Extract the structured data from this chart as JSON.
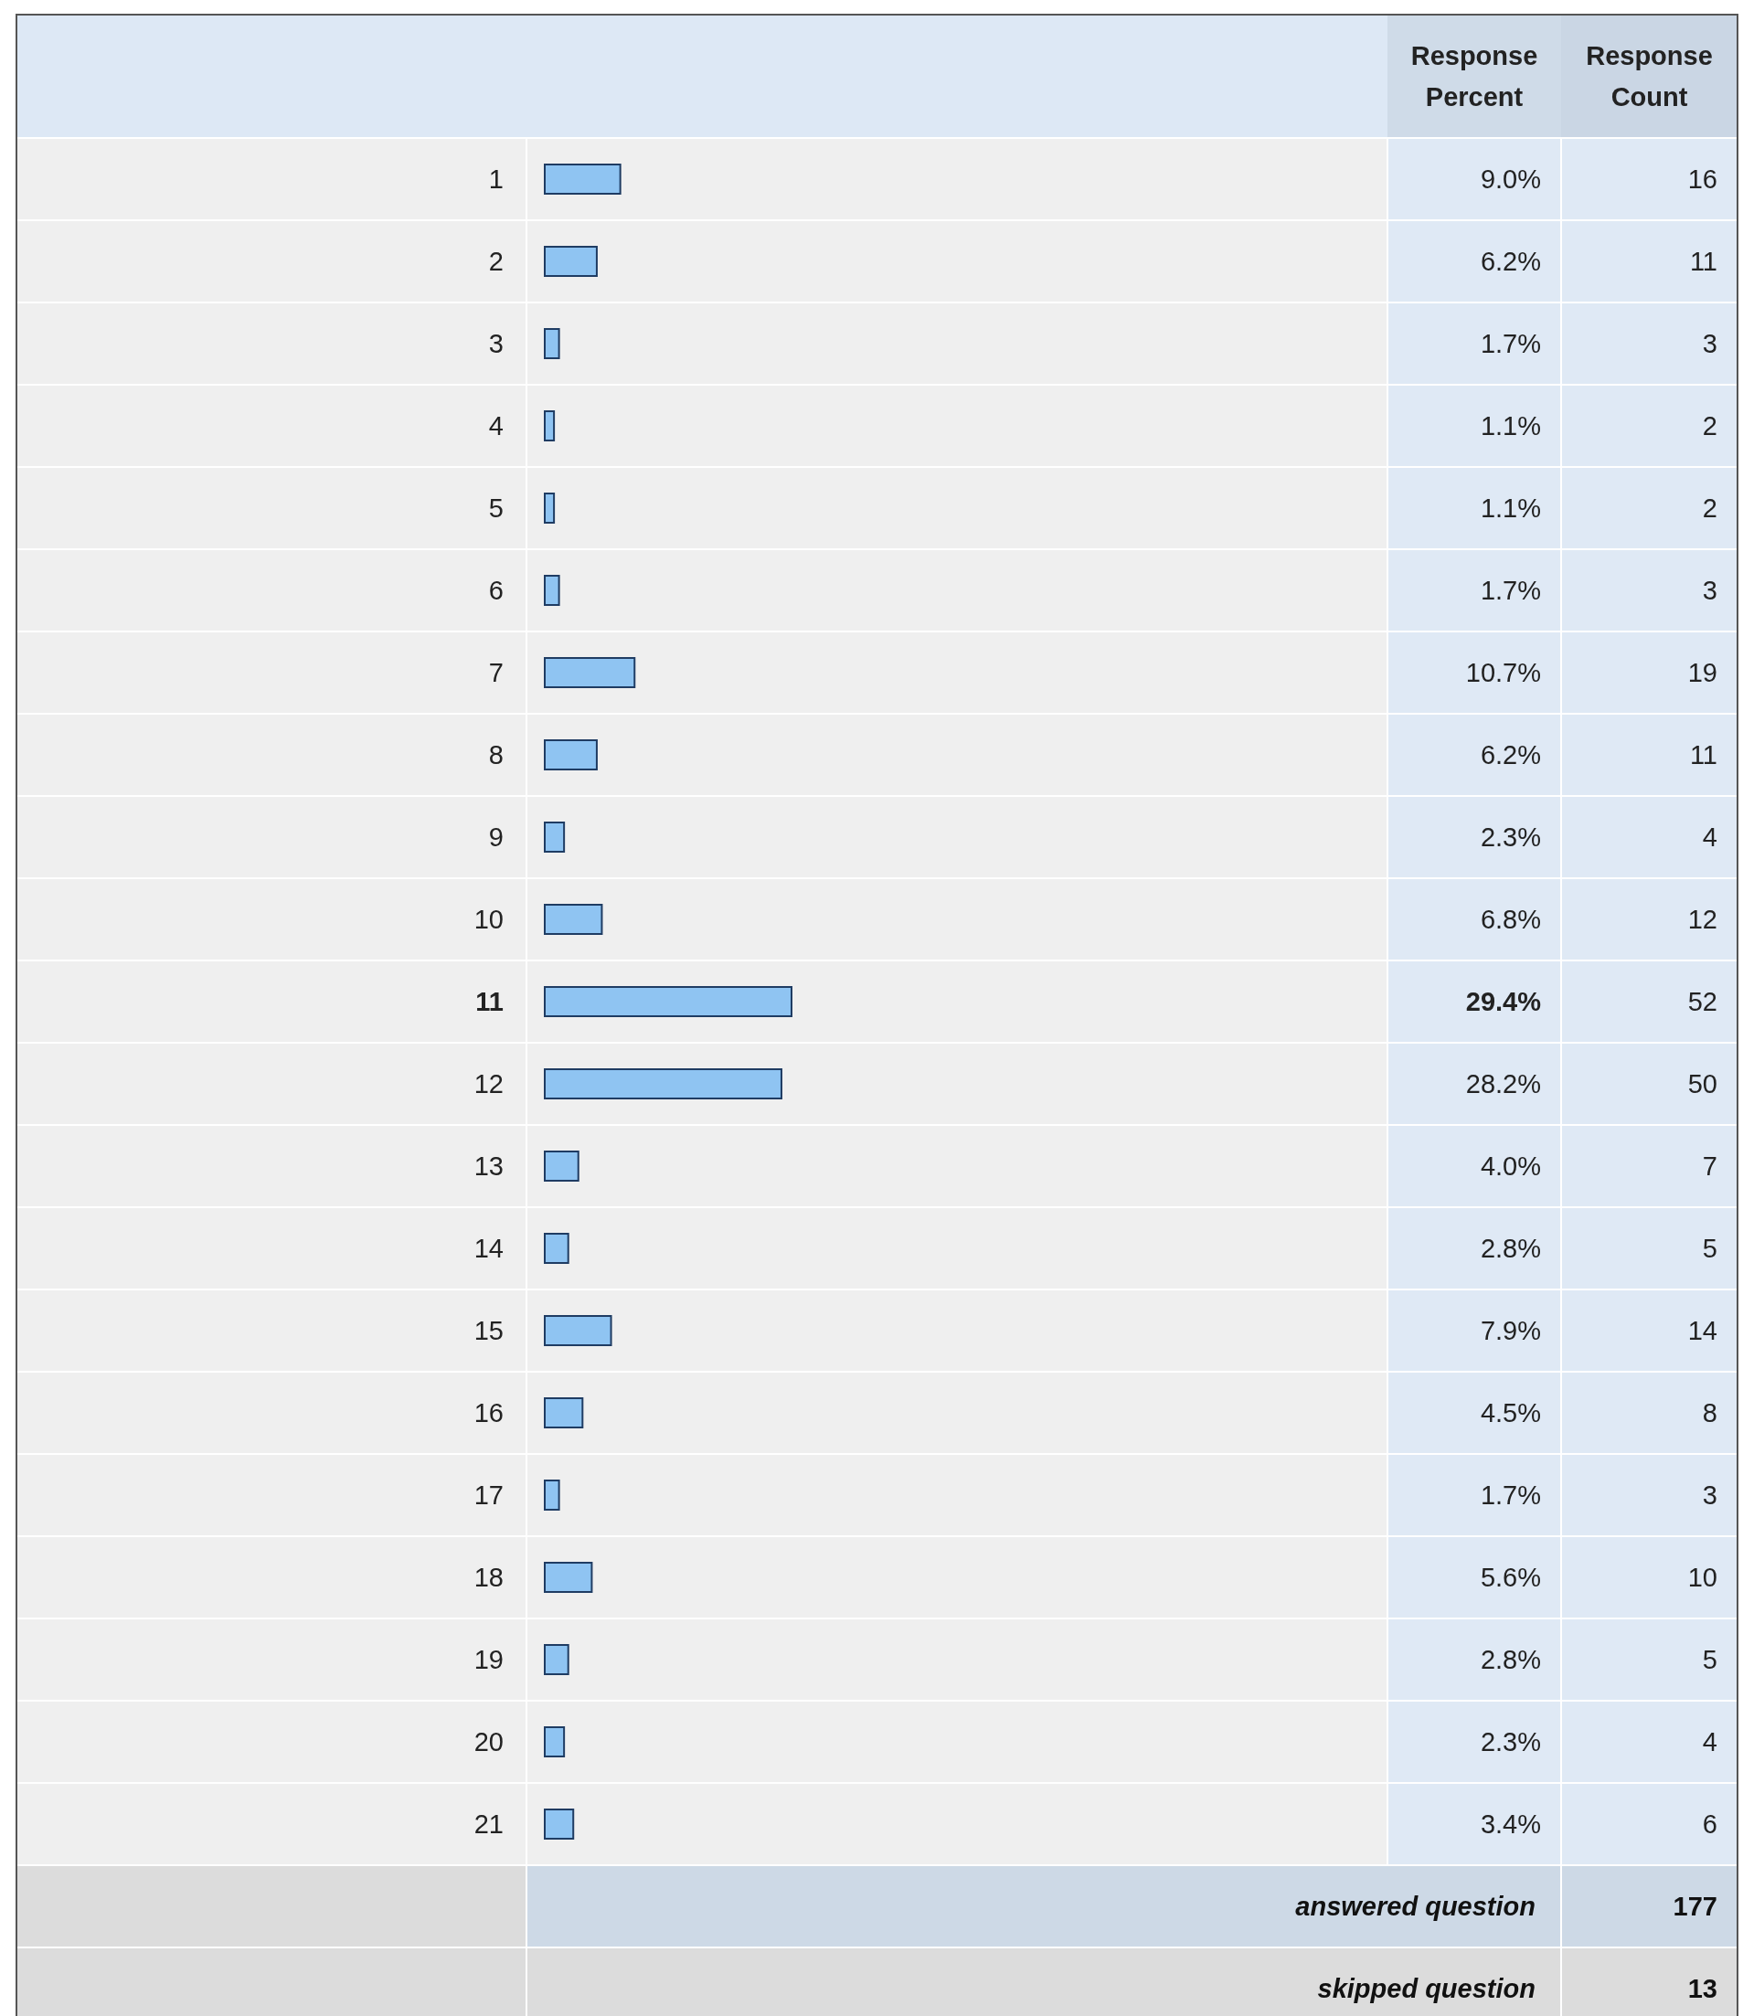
{
  "chart_data": {
    "type": "bar",
    "orientation": "horizontal",
    "tick_labels": "y",
    "categories": [
      "1",
      "2",
      "3",
      "4",
      "5",
      "6",
      "7",
      "8",
      "9",
      "10",
      "11",
      "12",
      "13",
      "14",
      "15",
      "16",
      "17",
      "18",
      "19",
      "20",
      "21"
    ],
    "values": [
      9.0,
      6.2,
      1.7,
      1.1,
      1.1,
      1.7,
      10.7,
      6.2,
      2.3,
      6.8,
      29.4,
      28.2,
      4.0,
      2.8,
      7.9,
      4.5,
      1.7,
      5.6,
      2.8,
      2.3,
      3.4
    ],
    "value_labels": [
      "9.0%",
      "6.2%",
      "1.7%",
      "1.1%",
      "1.1%",
      "1.7%",
      "10.7%",
      "6.2%",
      "2.3%",
      "6.8%",
      "29.4%",
      "28.2%",
      "4.0%",
      "2.8%",
      "7.9%",
      "4.5%",
      "1.7%",
      "5.6%",
      "2.8%",
      "2.3%",
      "3.4%"
    ],
    "color": "#8fc4f2",
    "annotations": [
      "Response Percent",
      "Response Count",
      "16",
      "11",
      "3",
      "2",
      "2",
      "3",
      "19",
      "11",
      "4",
      "12",
      "52",
      "50",
      "7",
      "5",
      "14",
      "8",
      "3",
      "10",
      "5",
      "4",
      "6",
      "answered question",
      "177",
      "skipped question",
      "13"
    ]
  }
}
